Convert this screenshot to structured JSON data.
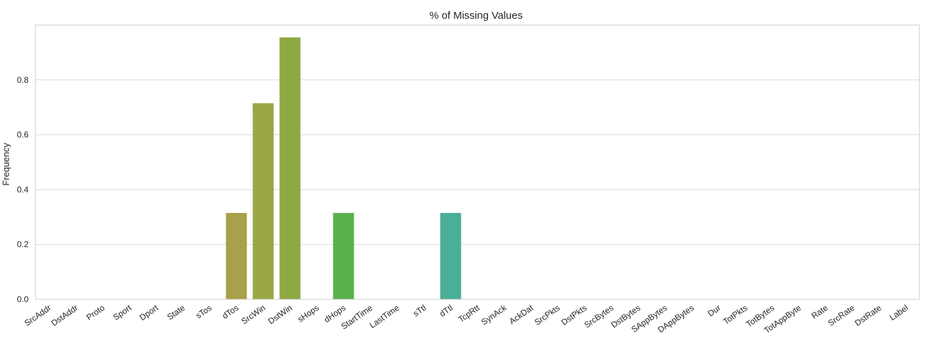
{
  "chart_data": {
    "type": "bar",
    "title": "% of Missing Values",
    "xlabel": "",
    "ylabel": "Frequency",
    "ylim": [
      0,
      1.0
    ],
    "yticks": [
      "0.0",
      "0.2",
      "0.4",
      "0.6",
      "0.8"
    ],
    "grid": true,
    "categories": [
      "SrcAddr",
      "DstAddr",
      "Proto",
      "Sport",
      "Dport",
      "State",
      "sTos",
      "dTos",
      "SrcWin",
      "DstWin",
      "sHops",
      "dHops",
      "StartTime",
      "LastTime",
      "sTtl",
      "dTtl",
      "TcpRtt",
      "SynAck",
      "AckDat",
      "SrcPkts",
      "DstPkts",
      "SrcBytes",
      "DstBytes",
      "SAppBytes",
      "DAppBytes",
      "Dur",
      "TotPkts",
      "TotBytes",
      "TotAppByte",
      "Rate",
      "SrcRate",
      "DstRate",
      "Label"
    ],
    "values": [
      0,
      0,
      0,
      0,
      0,
      0,
      0,
      0.315,
      0.715,
      0.955,
      0,
      0.315,
      0,
      0,
      0,
      0.315,
      0,
      0,
      0,
      0,
      0,
      0,
      0,
      0,
      0,
      0,
      0,
      0,
      0,
      0,
      0,
      0,
      0
    ],
    "colors": {
      "dTos": "#a8a04a",
      "SrcWin": "#9ca645",
      "DstWin": "#8ea843",
      "dHops": "#5ab04a",
      "dTtl": "#4aae98"
    },
    "grid_color": "#d9d9d9",
    "axis_color": "#cccccc"
  }
}
